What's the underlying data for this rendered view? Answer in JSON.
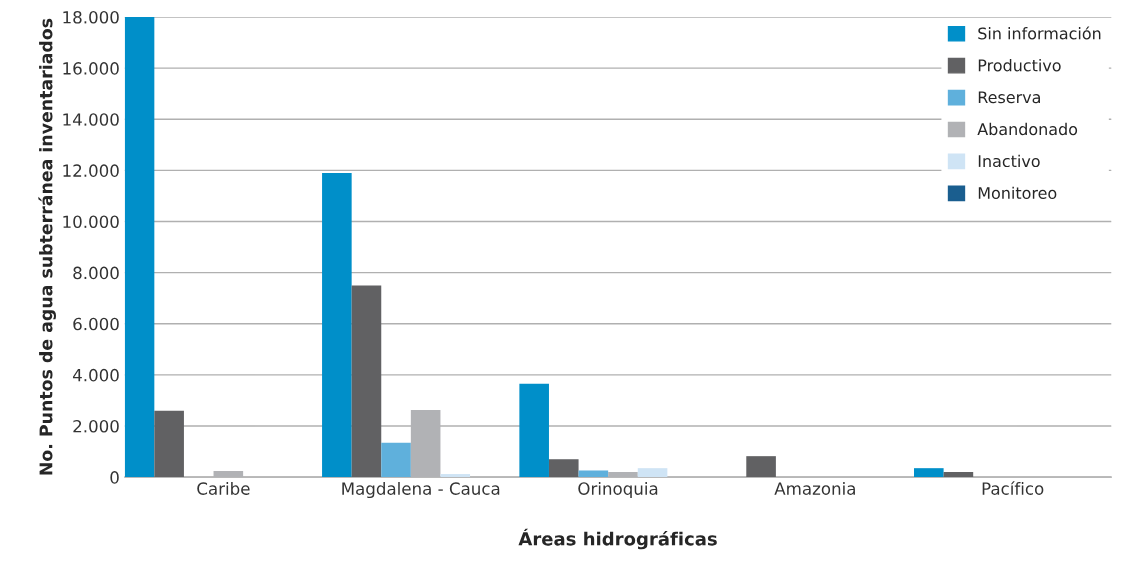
{
  "chart_data": {
    "type": "bar",
    "xlabel": "Áreas hidrográficas",
    "ylabel": "No. Puntos de agua subterránea inventariados",
    "categories": [
      "Caribe",
      "Magdalena - Cauca",
      "Orinoquia",
      "Amazonia",
      "Pacífico"
    ],
    "series": [
      {
        "name": "Sin información",
        "color": "#008fc9",
        "values": [
          18000,
          11900,
          3650,
          null,
          350
        ]
      },
      {
        "name": "Productivo",
        "color": "#616163",
        "values": [
          2600,
          7500,
          700,
          820,
          200
        ]
      },
      {
        "name": "Reserva",
        "color": "#5fb0dc",
        "values": [
          null,
          1340,
          260,
          null,
          null
        ]
      },
      {
        "name": "Abandonado",
        "color": "#b1b2b5",
        "values": [
          240,
          2630,
          200,
          null,
          null
        ]
      },
      {
        "name": "Inactivo",
        "color": "#cfe4f5",
        "values": [
          null,
          120,
          350,
          null,
          null
        ]
      },
      {
        "name": "Monitoreo",
        "color": "#1a5e8f",
        "values": [
          null,
          null,
          null,
          null,
          null
        ]
      }
    ],
    "ylim": [
      0,
      18000
    ],
    "yticks": [
      {
        "value": 0,
        "label": "0"
      },
      {
        "value": 2000,
        "label": "2.000"
      },
      {
        "value": 4000,
        "label": "4.000"
      },
      {
        "value": 6000,
        "label": "6.000"
      },
      {
        "value": 8000,
        "label": "8.000"
      },
      {
        "value": 10000,
        "label": "10.000"
      },
      {
        "value": 12000,
        "label": "12.000"
      },
      {
        "value": 14000,
        "label": "14.000"
      },
      {
        "value": 16000,
        "label": "16.000"
      },
      {
        "value": 18000,
        "label": "18.000"
      }
    ],
    "grid": "y",
    "legend": "top right"
  }
}
